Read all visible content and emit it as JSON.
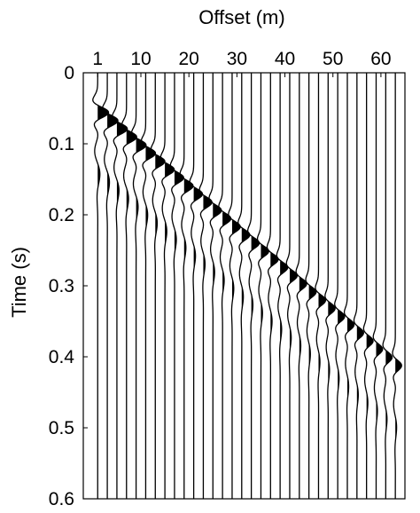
{
  "chart_data": {
    "type": "line",
    "subtype": "wiggle-trace seismogram (variable area, positive lobes filled)",
    "title": "",
    "xlabel": "Offset (m)",
    "ylabel": "Time (s)",
    "x_axis_position": "top",
    "y_axis_reversed": true,
    "xlim": [
      -2,
      65
    ],
    "ylim": [
      0,
      0.6
    ],
    "xticks": [
      1,
      10,
      20,
      30,
      40,
      50,
      60
    ],
    "xtick_labels": [
      "1",
      "10",
      "20",
      "30",
      "40",
      "50",
      "60"
    ],
    "yticks": [
      0,
      0.1,
      0.2,
      0.3,
      0.4,
      0.5,
      0.6
    ],
    "ytick_labels": [
      "0",
      "0.1",
      "0.2",
      "0.3",
      "0.4",
      "0.5",
      "0.6"
    ],
    "grid": false,
    "legend": "none",
    "trace_offsets_m": [
      1,
      3,
      5,
      7,
      9,
      11,
      13,
      15,
      17,
      19,
      21,
      23,
      25,
      27,
      29,
      31,
      33,
      35,
      37,
      39,
      41,
      43,
      45,
      47,
      49,
      51,
      53,
      55,
      57,
      59,
      61,
      63
    ],
    "arrival": {
      "intercept_s": 0.05,
      "slope_s_per_m": 0.00575
    },
    "wavelet_period_s": 0.045,
    "trace_color": "#000000"
  }
}
